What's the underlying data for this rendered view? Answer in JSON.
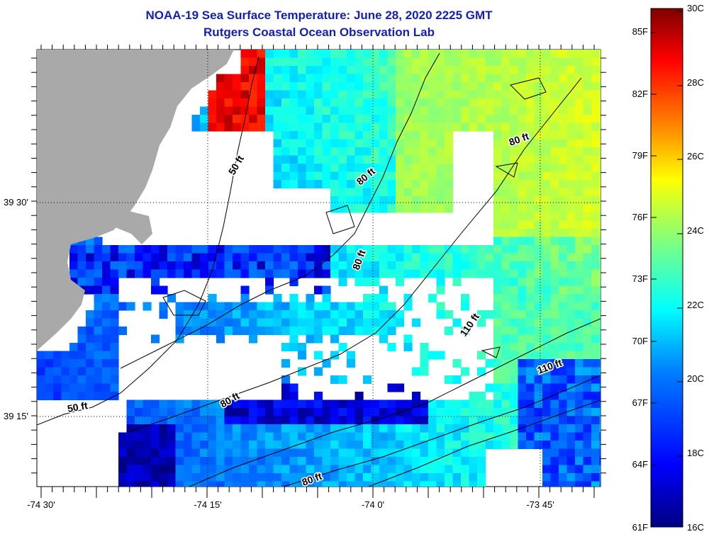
{
  "title": {
    "line1": "NOAA-19 Sea Surface Temperature:  June 28, 2020 2225 GMT",
    "line2": "Rutgers Coastal Ocean Observation Lab"
  },
  "map": {
    "latitude_labels": [
      "39 30'",
      "39 15'"
    ],
    "longitude_labels": [
      "-74 30'",
      "-74 15'",
      "-74 0'",
      "-73 45'"
    ],
    "contour_labels": [
      "50 ft",
      "50 ft",
      "80 ft",
      "80 ft",
      "80 ft",
      "80 ft",
      "80 ft",
      "110 ft",
      "110 ft"
    ],
    "colors": {
      "land": "#a9a9a9",
      "no_data": "#ffffff",
      "title": "#1420b4"
    }
  },
  "colorbar": {
    "celsius_labels": [
      "30C",
      "28C",
      "26C",
      "24C",
      "22C",
      "20C",
      "18C",
      "16C"
    ],
    "fahrenheit_labels": [
      "85F",
      "82F",
      "79F",
      "76F",
      "73F",
      "70F",
      "67F",
      "64F",
      "61F"
    ],
    "range_c": [
      16,
      30
    ],
    "colormap": [
      "#00007f",
      "#0000ff",
      "#007fff",
      "#00ffff",
      "#7fff7f",
      "#ffff00",
      "#ff7f00",
      "#ff0000",
      "#7f0000"
    ]
  }
}
